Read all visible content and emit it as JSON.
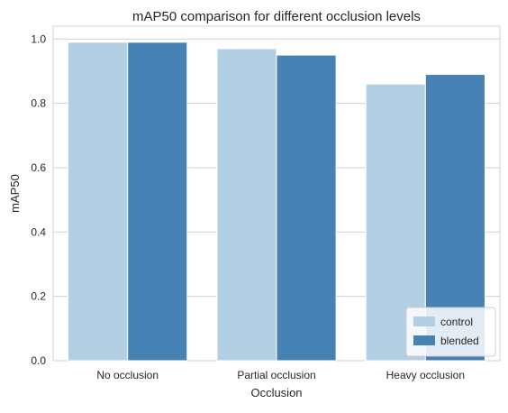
{
  "chart_data": {
    "type": "bar",
    "title": "mAP50 comparison for different occlusion levels",
    "xlabel": "Occlusion",
    "ylabel": "mAP50",
    "categories": [
      "No occlusion",
      "Partial occlusion",
      "Heavy occlusion"
    ],
    "series": [
      {
        "name": "control",
        "values": [
          0.99,
          0.97,
          0.86
        ],
        "color": "#b3cfe3"
      },
      {
        "name": "blended",
        "values": [
          0.99,
          0.95,
          0.89
        ],
        "color": "#4682b4"
      }
    ],
    "ylim": [
      0,
      1.04
    ],
    "yticks": [
      "0.0",
      "0.2",
      "0.4",
      "0.6",
      "0.8",
      "1.0"
    ],
    "grid": "horizontal",
    "legend_position": "lower-right"
  }
}
